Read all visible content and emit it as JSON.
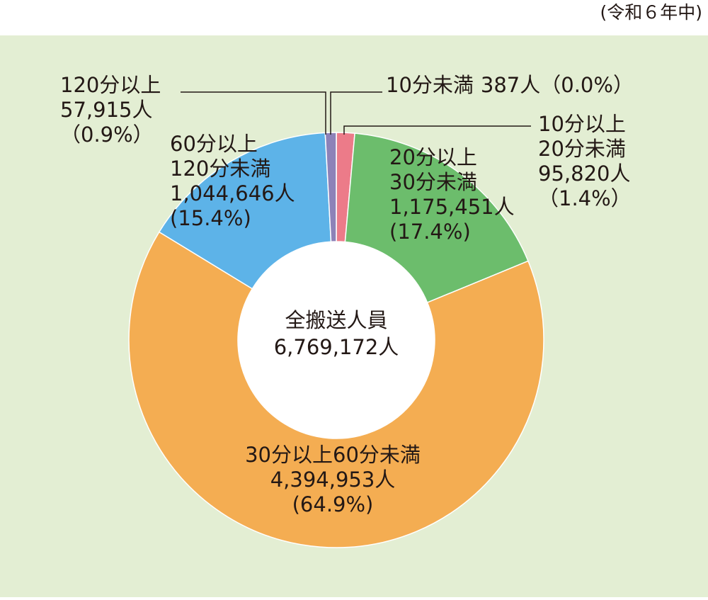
{
  "chart_data": {
    "type": "donut",
    "note": "(令和６年中)",
    "center_title": "全搬送人員",
    "total": 6769172,
    "total_label": "6,769,172人",
    "categories": [
      "10分未満",
      "10分以上20分未満",
      "20分以上30分未満",
      "30分以上60分未満",
      "60分以上120分未満",
      "120分以上"
    ],
    "values": [
      387,
      95820,
      1175451,
      4394953,
      1044646,
      57915
    ],
    "value_labels": [
      "387人",
      "95,820人",
      "1,175,451人",
      "4,394,953人",
      "1,044,646人",
      "57,915人"
    ],
    "percent_labels": [
      "（0.0%）",
      "（1.4%）",
      "(17.4%)",
      "(64.9%)",
      "(15.4%)",
      "（0.9%）"
    ],
    "colors": [
      "#e4485c",
      "#ec7b89",
      "#6cbd6c",
      "#f4ad52",
      "#5db3e8",
      "#8d82b8"
    ]
  }
}
